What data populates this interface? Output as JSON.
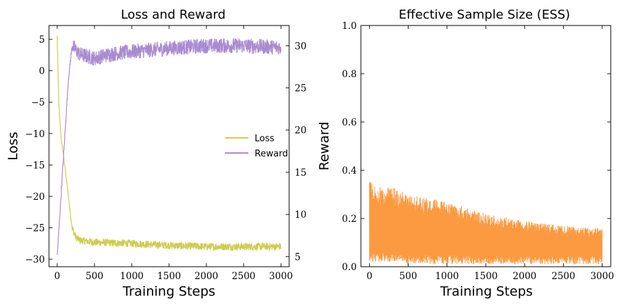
{
  "colors": {
    "loss": "#cfcc50",
    "reward": "#a98bd0",
    "ess": "#fb9a40"
  },
  "chart_data": [
    {
      "type": "line",
      "title": "Loss and Reward",
      "xlabel": "Training Steps",
      "ylabel": "Loss",
      "y2label": "Reward",
      "xlim": [
        -110,
        3110
      ],
      "ylim": [
        -31.2,
        7.2
      ],
      "y2lim": [
        3.8,
        32.4
      ],
      "xticks": [
        "0",
        "500",
        "1000",
        "1500",
        "2000",
        "2500",
        "3000"
      ],
      "yticks": [
        "5",
        "0",
        "−5",
        "−10",
        "−15",
        "−20",
        "−25",
        "−30"
      ],
      "y2ticks": [
        "30",
        "25",
        "20",
        "15",
        "10",
        "5"
      ],
      "legend": {
        "placement": "center-right",
        "entries": [
          "Loss",
          "Reward"
        ]
      },
      "series": [
        {
          "name": "Loss",
          "axis": "left",
          "x": [
            0,
            20,
            50,
            100,
            150,
            200,
            250,
            300,
            500,
            1000,
            1500,
            2000,
            2500,
            3000
          ],
          "y": [
            5.5,
            -5,
            -10.5,
            -15,
            -20,
            -25,
            -26.5,
            -27,
            -27.3,
            -27.5,
            -27.8,
            -28,
            -28,
            -28
          ],
          "noise_band": 0.6
        },
        {
          "name": "Reward",
          "axis": "right",
          "x": [
            0,
            50,
            100,
            150,
            200,
            250,
            300,
            500,
            700,
            1000,
            1500,
            2000,
            2500,
            3000
          ],
          "y": [
            5,
            12,
            19,
            26,
            30,
            29.5,
            29,
            28.5,
            29,
            29.3,
            29.7,
            30,
            30,
            29.8
          ],
          "noise_band": 0.9
        }
      ]
    },
    {
      "type": "line",
      "title": "Effective Sample Size (ESS)",
      "xlabel": "Training Steps",
      "ylabel": "",
      "xlim": [
        -110,
        3110
      ],
      "ylim": [
        0,
        1.0
      ],
      "xticks": [
        "0",
        "500",
        "1000",
        "1500",
        "2000",
        "2500",
        "3000"
      ],
      "yticks": [
        "1.0",
        "0.8",
        "0.6",
        "0.4",
        "0.2",
        "0.0"
      ],
      "series": [
        {
          "name": "ESS",
          "x": [
            0,
            100,
            300,
            500,
            800,
            1000,
            1500,
            2000,
            2500,
            3000
          ],
          "upper": [
            0.36,
            0.33,
            0.33,
            0.3,
            0.28,
            0.27,
            0.22,
            0.19,
            0.17,
            0.16
          ],
          "lower": [
            0.02,
            0.02,
            0.02,
            0.01,
            0.01,
            0.01,
            0.01,
            0.01,
            0.01,
            0.01
          ]
        }
      ]
    }
  ]
}
